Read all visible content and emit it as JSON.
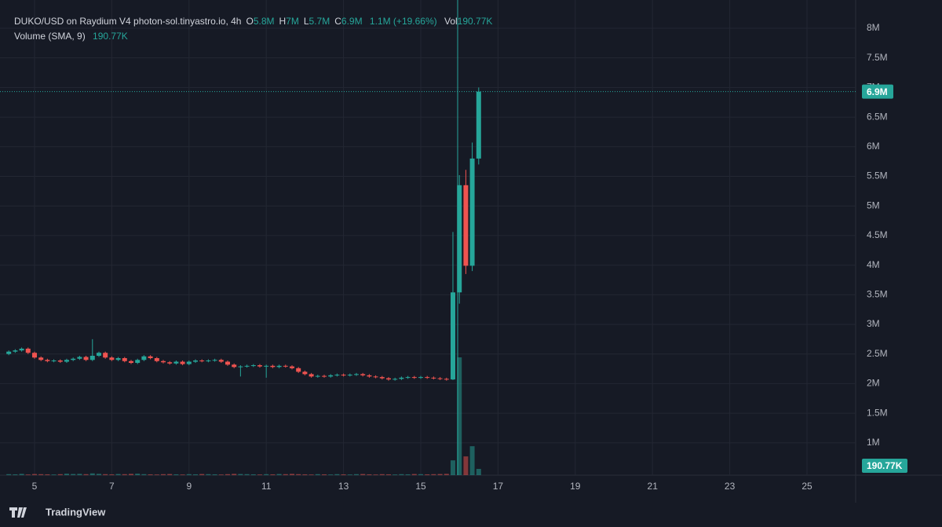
{
  "chart_data": {
    "type": "candlestick",
    "title": "DUKO/USD on Raydium V4 photon-sol.tinyastro.io, 4h",
    "ohlc_legend": [
      {
        "key": "O",
        "text": "5.8M"
      },
      {
        "key": "H",
        "text": "7M"
      },
      {
        "key": "L",
        "text": "5.7M"
      },
      {
        "key": "C",
        "text": "6.9M"
      }
    ],
    "change": "1.1M (+19.66%)",
    "vol_key": "Vol",
    "vol_text": "190.77K",
    "volume_title": "Volume (SMA, 9)",
    "volume_text": "190.77K",
    "brand": "TradingView",
    "up_color": "#26a69a",
    "down_color": "#ef5350",
    "xlim": [
      4.106,
      26.26
    ],
    "xticks": [
      5,
      7,
      9,
      11,
      13,
      15,
      17,
      19,
      21,
      23,
      25
    ],
    "ylim": [
      454000,
      8477000
    ],
    "yticks": [
      {
        "value": 1000000,
        "label": "1M"
      },
      {
        "value": 1500000,
        "label": "1.5M"
      },
      {
        "value": 2000000,
        "label": "2M"
      },
      {
        "value": 2500000,
        "label": "2.5M"
      },
      {
        "value": 3000000,
        "label": "3M"
      },
      {
        "value": 3500000,
        "label": "3.5M"
      },
      {
        "value": 4000000,
        "label": "4M"
      },
      {
        "value": 4500000,
        "label": "4.5M"
      },
      {
        "value": 5000000,
        "label": "5M"
      },
      {
        "value": 5500000,
        "label": "5.5M"
      },
      {
        "value": 6000000,
        "label": "6M"
      },
      {
        "value": 6500000,
        "label": "6.5M"
      },
      {
        "value": 7000000,
        "label": "7M"
      },
      {
        "value": 7500000,
        "label": "7.5M"
      },
      {
        "value": 8000000,
        "label": "8M"
      }
    ],
    "grid": true,
    "last_price": {
      "value": 6930000,
      "label": "6.9M"
    },
    "last_volume": {
      "value": 190770,
      "label": "190.77K"
    },
    "x": [
      4.333,
      4.5,
      4.667,
      4.833,
      5,
      5.167,
      5.333,
      5.5,
      5.667,
      5.833,
      6,
      6.167,
      6.333,
      6.5,
      6.667,
      6.833,
      7,
      7.167,
      7.333,
      7.5,
      7.667,
      7.833,
      8,
      8.167,
      8.333,
      8.5,
      8.667,
      8.833,
      9,
      9.167,
      9.333,
      9.5,
      9.667,
      9.833,
      10,
      10.167,
      10.333,
      10.5,
      10.667,
      10.833,
      11,
      11.167,
      11.333,
      11.5,
      11.667,
      11.833,
      12,
      12.167,
      12.333,
      12.5,
      12.667,
      12.833,
      13,
      13.167,
      13.333,
      13.5,
      13.667,
      13.833,
      14,
      14.167,
      14.333,
      14.5,
      14.667,
      14.833,
      15,
      15.167,
      15.333,
      15.5,
      15.667,
      15.833,
      16,
      16.167,
      16.333,
      16.5
    ],
    "open": [
      2500000,
      2540000,
      2560000,
      2590000,
      2520000,
      2440000,
      2400000,
      2380000,
      2390000,
      2370000,
      2400000,
      2420000,
      2450000,
      2400000,
      2470000,
      2520000,
      2440000,
      2400000,
      2430000,
      2380000,
      2350000,
      2400000,
      2460000,
      2430000,
      2380000,
      2360000,
      2340000,
      2370000,
      2330000,
      2370000,
      2390000,
      2380000,
      2390000,
      2400000,
      2370000,
      2320000,
      2280000,
      2290000,
      2300000,
      2310000,
      2290000,
      2300000,
      2280000,
      2300000,
      2290000,
      2260000,
      2200000,
      2160000,
      2120000,
      2130000,
      2120000,
      2140000,
      2150000,
      2140000,
      2150000,
      2160000,
      2140000,
      2120000,
      2110000,
      2090000,
      2070000,
      2080000,
      2100000,
      2110000,
      2100000,
      2110000,
      2100000,
      2090000,
      2080000,
      2070000,
      3540000,
      5350000,
      3990000,
      5800000
    ],
    "high": [
      2560000,
      2580000,
      2610000,
      2610000,
      2540000,
      2460000,
      2420000,
      2410000,
      2410000,
      2420000,
      2440000,
      2470000,
      2470000,
      2750000,
      2540000,
      2540000,
      2460000,
      2450000,
      2450000,
      2400000,
      2420000,
      2480000,
      2480000,
      2450000,
      2400000,
      2380000,
      2390000,
      2390000,
      2390000,
      2410000,
      2410000,
      2410000,
      2420000,
      2420000,
      2390000,
      2340000,
      2310000,
      2320000,
      2330000,
      2330000,
      2320000,
      2320000,
      2320000,
      2320000,
      2310000,
      2280000,
      2220000,
      2180000,
      2150000,
      2150000,
      2160000,
      2170000,
      2170000,
      2170000,
      2180000,
      2180000,
      2160000,
      2140000,
      2130000,
      2110000,
      2100000,
      2120000,
      2130000,
      2130000,
      2130000,
      2130000,
      2120000,
      2110000,
      2100000,
      4560000,
      5520000,
      5610000,
      6070000,
      7000000
    ],
    "low": [
      2480000,
      2520000,
      2540000,
      2500000,
      2420000,
      2380000,
      2360000,
      2360000,
      2350000,
      2350000,
      2380000,
      2400000,
      2380000,
      2380000,
      2450000,
      2420000,
      2380000,
      2380000,
      2360000,
      2330000,
      2330000,
      2380000,
      2410000,
      2360000,
      2340000,
      2320000,
      2320000,
      2310000,
      2310000,
      2350000,
      2360000,
      2360000,
      2370000,
      2350000,
      2300000,
      2260000,
      2120000,
      2270000,
      2280000,
      2270000,
      2100000,
      2260000,
      2260000,
      2270000,
      2240000,
      2180000,
      2140000,
      2100000,
      2100000,
      2100000,
      2100000,
      2120000,
      2120000,
      2120000,
      2130000,
      2120000,
      2100000,
      2090000,
      2070000,
      2050000,
      2050000,
      2060000,
      2080000,
      2080000,
      2080000,
      2080000,
      2070000,
      2060000,
      2050000,
      2060000,
      3350000,
      3850000,
      3900000,
      5700000
    ],
    "close": [
      2540000,
      2560000,
      2590000,
      2520000,
      2440000,
      2400000,
      2380000,
      2390000,
      2370000,
      2400000,
      2420000,
      2450000,
      2400000,
      2470000,
      2520000,
      2440000,
      2400000,
      2430000,
      2380000,
      2350000,
      2400000,
      2460000,
      2430000,
      2380000,
      2360000,
      2340000,
      2370000,
      2330000,
      2370000,
      2390000,
      2380000,
      2390000,
      2400000,
      2370000,
      2320000,
      2280000,
      2290000,
      2300000,
      2310000,
      2290000,
      2300000,
      2280000,
      2300000,
      2290000,
      2260000,
      2200000,
      2160000,
      2120000,
      2130000,
      2120000,
      2140000,
      2150000,
      2140000,
      2150000,
      2160000,
      2140000,
      2120000,
      2110000,
      2090000,
      2070000,
      2080000,
      2100000,
      2110000,
      2100000,
      2110000,
      2100000,
      2090000,
      2080000,
      2070000,
      3540000,
      5350000,
      3990000,
      5800000,
      6930000
    ],
    "volume": [
      30000,
      25000,
      40000,
      20000,
      35000,
      30000,
      25000,
      20000,
      30000,
      45000,
      35000,
      40000,
      30000,
      55000,
      40000,
      30000,
      25000,
      35000,
      30000,
      40000,
      45000,
      30000,
      25000,
      20000,
      30000,
      35000,
      25000,
      20000,
      30000,
      25000,
      35000,
      30000,
      25000,
      20000,
      30000,
      40000,
      35000,
      30000,
      25000,
      20000,
      30000,
      25000,
      35000,
      30000,
      40000,
      30000,
      25000,
      20000,
      30000,
      25000,
      20000,
      30000,
      25000,
      20000,
      30000,
      35000,
      25000,
      20000,
      30000,
      25000,
      20000,
      30000,
      25000,
      35000,
      30000,
      25000,
      30000,
      35000,
      40000,
      450000,
      3580000,
      570000,
      880000,
      190770
    ]
  }
}
